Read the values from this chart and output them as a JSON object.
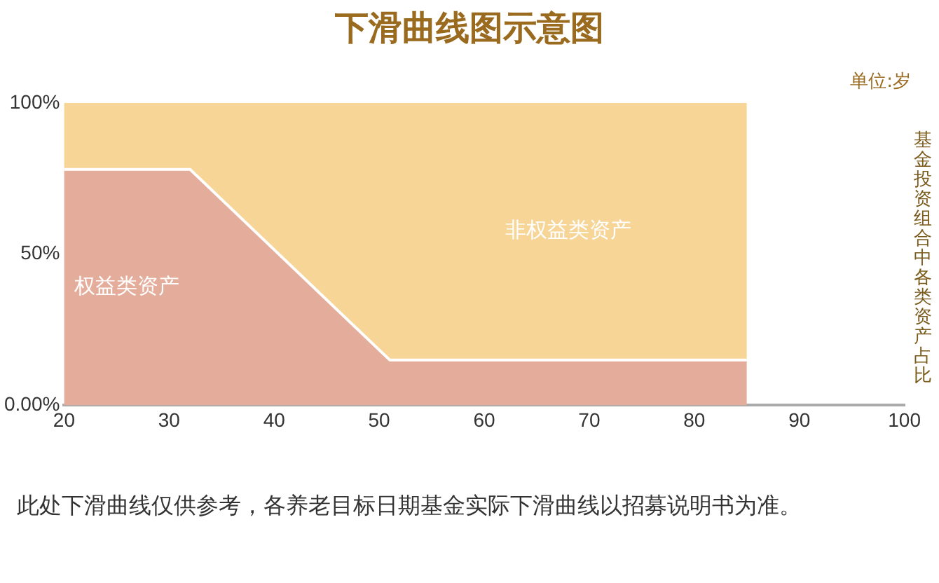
{
  "chart_data": {
    "type": "area",
    "stacked": true,
    "title": "下滑曲线图示意图",
    "xlabel": "单位:岁",
    "y2label": "基金投资组合中各类资产占比",
    "x": [
      20,
      32,
      51,
      85
    ],
    "series": [
      {
        "name": "权益类资产",
        "color": "#e4ac9a",
        "values": [
          78,
          78,
          15,
          15
        ]
      },
      {
        "name": "非权益类资产",
        "color": "#f6d597",
        "values": [
          22,
          22,
          85,
          85
        ]
      }
    ],
    "xlim": [
      20,
      100
    ],
    "xticks": [
      20,
      30,
      40,
      50,
      60,
      70,
      80,
      90,
      100
    ],
    "ylim": [
      0,
      100
    ],
    "yticks": [
      {
        "value": 0,
        "label": "0.00%"
      },
      {
        "value": 50,
        "label": "50%"
      },
      {
        "value": 100,
        "label": "100%"
      }
    ],
    "grid": false,
    "legend": false,
    "annotations": [
      "此处下滑曲线仅供参考，各养老目标日期基金实际下滑曲线以招募说明书为准。"
    ]
  }
}
